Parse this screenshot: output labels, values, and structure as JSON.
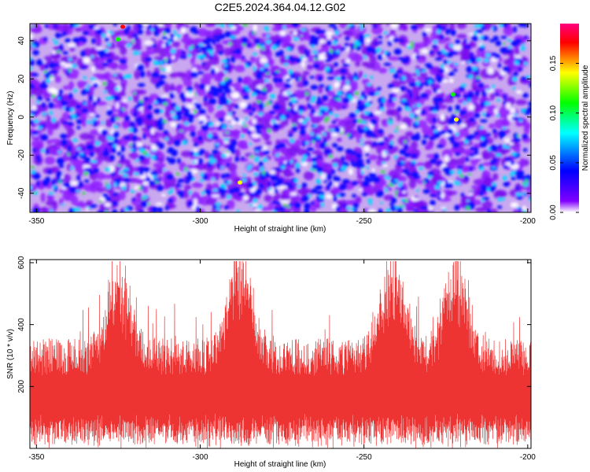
{
  "figure_title": "C2E5.2024.364.04.12.G02",
  "chart_data": [
    {
      "type": "heatmap",
      "xlabel": "Height of straight line (km)",
      "ylabel": "Frequency (Hz)",
      "xlim": [
        -352,
        -199
      ],
      "ylim": [
        -50,
        49
      ],
      "x_ticks": [
        -350,
        -300,
        -250,
        -200
      ],
      "y_ticks": [
        -40,
        -20,
        0,
        20,
        40
      ],
      "colorbar": {
        "label": "Normalized spectral amplitude",
        "range": [
          0,
          0.19
        ],
        "ticks": [
          0.0,
          0.05,
          0.1,
          0.15
        ],
        "tick_labels": [
          "0.00",
          "0.05",
          "0.10",
          "0.15"
        ],
        "colors": [
          "#ffffff",
          "#8000ff",
          "#0000ff",
          "#00ffff",
          "#00ff00",
          "#ffff00",
          "#ff0000",
          "#ff0080"
        ]
      },
      "grid": false
    },
    {
      "type": "line",
      "xlabel": "Height of straight line (km)",
      "ylabel": "SNR (10 * v/v)",
      "xlim": [
        -352,
        -199
      ],
      "ylim": [
        0,
        610
      ],
      "x_ticks": [
        -350,
        -300,
        -250,
        -200
      ],
      "y_ticks": [
        200,
        400,
        600
      ],
      "color": "#ee3333",
      "baseline_snr": [
        115,
        235
      ],
      "spike_regions": [
        {
          "center": -325,
          "peak": 540
        },
        {
          "center": -288,
          "peak": 600
        },
        {
          "center": -241,
          "peak": 560
        },
        {
          "center": -222,
          "peak": 580
        }
      ],
      "grid": false
    }
  ]
}
